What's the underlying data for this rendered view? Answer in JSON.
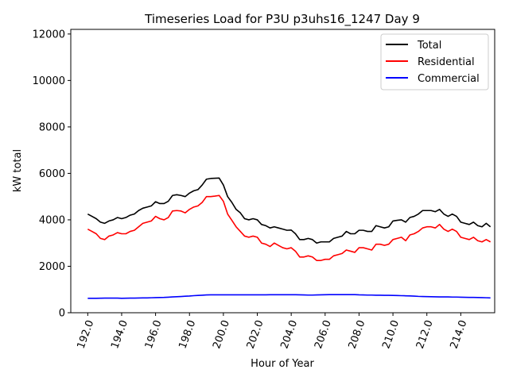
{
  "chart_data": {
    "type": "line",
    "title": "Timeseries Load for P3U p3uhs16_1247  Day 9",
    "xlabel": "Hour of Year",
    "ylabel": "kW total",
    "xlim": [
      191.0,
      216.0
    ],
    "ylim": [
      0,
      12200
    ],
    "xticks": [
      192,
      194,
      196,
      198,
      200,
      202,
      204,
      206,
      208,
      210,
      212,
      214
    ],
    "xtick_labels": [
      "192.0",
      "194.0",
      "196.0",
      "198.0",
      "200.0",
      "202.0",
      "204.0",
      "206.0",
      "208.0",
      "210.0",
      "212.0",
      "214.0"
    ],
    "yticks": [
      0,
      2000,
      4000,
      6000,
      8000,
      10000,
      12000
    ],
    "ytick_labels": [
      "0",
      "2000",
      "4000",
      "6000",
      "8000",
      "10000",
      "12000"
    ],
    "legend_position": "top-right",
    "x": [
      192.0,
      192.25,
      192.5,
      192.75,
      193.0,
      193.25,
      193.5,
      193.75,
      194.0,
      194.25,
      194.5,
      194.75,
      195.0,
      195.25,
      195.5,
      195.75,
      196.0,
      196.25,
      196.5,
      196.75,
      197.0,
      197.25,
      197.5,
      197.75,
      198.0,
      198.25,
      198.5,
      198.75,
      199.0,
      199.25,
      199.5,
      199.75,
      200.0,
      200.25,
      200.5,
      200.75,
      201.0,
      201.25,
      201.5,
      201.75,
      202.0,
      202.25,
      202.5,
      202.75,
      203.0,
      203.25,
      203.5,
      203.75,
      204.0,
      204.25,
      204.5,
      204.75,
      205.0,
      205.25,
      205.5,
      205.75,
      206.0,
      206.25,
      206.5,
      206.75,
      207.0,
      207.25,
      207.5,
      207.75,
      208.0,
      208.25,
      208.5,
      208.75,
      209.0,
      209.25,
      209.5,
      209.75,
      210.0,
      210.25,
      210.5,
      210.75,
      211.0,
      211.25,
      211.5,
      211.75,
      212.0,
      212.25,
      212.5,
      212.75,
      213.0,
      213.25,
      213.5,
      213.75,
      214.0,
      214.25,
      214.5,
      214.75,
      215.0,
      215.25,
      215.5,
      215.75
    ],
    "series": [
      {
        "name": "Total",
        "color": "#000000",
        "values": [
          4250,
          4150,
          4050,
          3900,
          3850,
          3950,
          4000,
          4100,
          4050,
          4100,
          4200,
          4250,
          4400,
          4500,
          4550,
          4600,
          4780,
          4700,
          4700,
          4800,
          5050,
          5080,
          5050,
          5000,
          5150,
          5250,
          5300,
          5500,
          5750,
          5780,
          5790,
          5800,
          5500,
          5000,
          4750,
          4450,
          4300,
          4050,
          4000,
          4050,
          4000,
          3800,
          3750,
          3650,
          3700,
          3650,
          3600,
          3550,
          3560,
          3400,
          3150,
          3150,
          3200,
          3150,
          3000,
          3050,
          3050,
          3050,
          3200,
          3250,
          3300,
          3500,
          3400,
          3400,
          3550,
          3550,
          3500,
          3500,
          3750,
          3700,
          3650,
          3700,
          3950,
          3980,
          4000,
          3900,
          4100,
          4150,
          4250,
          4400,
          4400,
          4400,
          4350,
          4450,
          4250,
          4150,
          4250,
          4150,
          3900,
          3850,
          3800,
          3900,
          3750,
          3700,
          3850,
          3700
        ]
      },
      {
        "name": "Residential",
        "color": "#ff0000",
        "values": [
          3600,
          3500,
          3400,
          3200,
          3150,
          3300,
          3350,
          3450,
          3400,
          3400,
          3500,
          3550,
          3700,
          3850,
          3900,
          3950,
          4150,
          4050,
          4000,
          4100,
          4380,
          4400,
          4380,
          4300,
          4450,
          4550,
          4600,
          4750,
          5000,
          5000,
          5020,
          5050,
          4800,
          4250,
          3980,
          3700,
          3500,
          3300,
          3250,
          3300,
          3250,
          3000,
          2950,
          2850,
          3000,
          2900,
          2800,
          2750,
          2800,
          2650,
          2400,
          2400,
          2450,
          2400,
          2250,
          2250,
          2300,
          2300,
          2450,
          2500,
          2550,
          2700,
          2650,
          2600,
          2800,
          2800,
          2750,
          2700,
          2950,
          2950,
          2900,
          2950,
          3150,
          3200,
          3250,
          3100,
          3350,
          3400,
          3500,
          3650,
          3700,
          3700,
          3650,
          3800,
          3600,
          3500,
          3600,
          3500,
          3250,
          3200,
          3150,
          3250,
          3100,
          3050,
          3150,
          3050
        ]
      },
      {
        "name": "Commercial",
        "color": "#0000ff",
        "values": [
          620,
          620,
          620,
          625,
          630,
          630,
          630,
          630,
          620,
          625,
          630,
          630,
          635,
          640,
          640,
          645,
          650,
          655,
          660,
          670,
          680,
          690,
          700,
          710,
          720,
          735,
          745,
          755,
          765,
          770,
          770,
          770,
          770,
          770,
          770,
          770,
          770,
          770,
          770,
          770,
          770,
          770,
          770,
          775,
          775,
          775,
          775,
          775,
          775,
          775,
          770,
          765,
          760,
          760,
          765,
          770,
          775,
          780,
          780,
          780,
          780,
          780,
          780,
          780,
          770,
          765,
          760,
          760,
          755,
          755,
          750,
          750,
          745,
          740,
          735,
          730,
          725,
          715,
          705,
          700,
          695,
          690,
          685,
          680,
          680,
          680,
          675,
          675,
          670,
          665,
          660,
          660,
          655,
          650,
          645,
          640
        ]
      }
    ]
  }
}
